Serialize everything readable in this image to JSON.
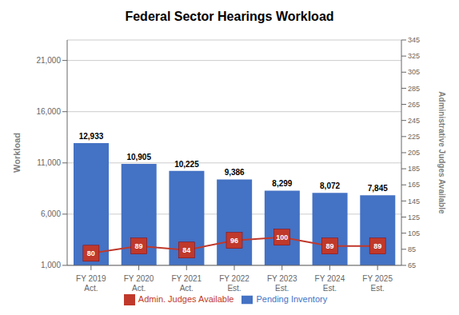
{
  "chart_data": {
    "type": "bar",
    "title": "Federal Sector Hearings Workload",
    "categories": [
      "FY 2019\nAct.",
      "FY 2020\nAct.",
      "FY 2021\nAct.",
      "FY 2022\nEst.",
      "FY 2023\nEst.",
      "FY 2024\nEst.",
      "FY 2025\nEst."
    ],
    "series": [
      {
        "name": "Pending Inventory",
        "type": "bar",
        "color": "#4472C4",
        "values": [
          12933,
          10905,
          10225,
          9386,
          8299,
          8072,
          7845
        ],
        "value_labels": [
          "12,933",
          "10,905",
          "10,225",
          "9,386",
          "8,299",
          "8,072",
          "7,845"
        ]
      },
      {
        "name": "Admin. Judges Available",
        "type": "line",
        "axis": "y2",
        "color": "#C0392B",
        "marker": "square",
        "values": [
          80,
          89,
          84,
          96,
          100,
          89,
          89
        ]
      }
    ],
    "ylabel": "Workload",
    "y2label": "Administrative Judges Available",
    "ylim": [
      1000,
      23000
    ],
    "yticks": [
      {
        "value": 1000,
        "label": "1,000"
      },
      {
        "value": 6000,
        "label": "6,000"
      },
      {
        "value": 11000,
        "label": "11,000"
      },
      {
        "value": 16000,
        "label": "16,000"
      },
      {
        "value": 21000,
        "label": "21,000"
      }
    ],
    "y2lim": [
      65,
      345
    ],
    "y2ticks": [
      65,
      85,
      105,
      125,
      145,
      165,
      185,
      205,
      225,
      245,
      265,
      285,
      305,
      325,
      345
    ],
    "grid": true,
    "legend": "bottom",
    "data_labels": true
  }
}
